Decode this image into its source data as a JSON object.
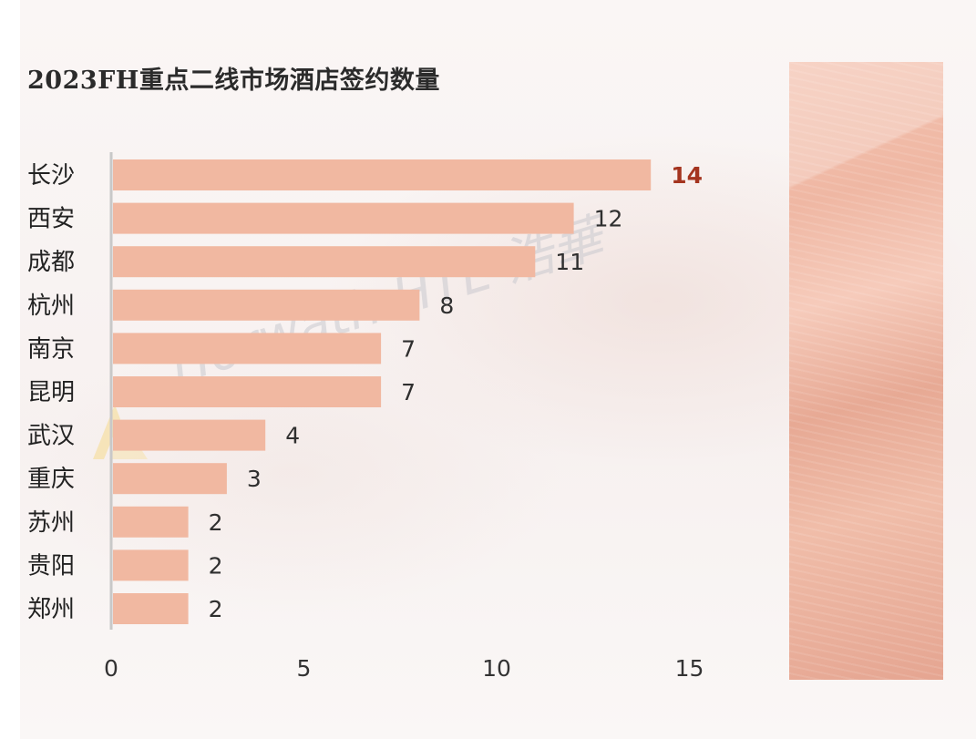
{
  "title": "2023FH重点二线市场酒店签约数量",
  "watermark": "Horwath HTL 浩華",
  "colors": {
    "bar": "#f1b8a1",
    "highlight_label": "#a4341f",
    "axis": "#c8c8c8",
    "side_panel": "#efb7a3"
  },
  "chart_data": {
    "type": "bar",
    "orientation": "horizontal",
    "title": "2023FH重点二线市场酒店签约数量",
    "categories": [
      "长沙",
      "西安",
      "成都",
      "杭州",
      "南京",
      "昆明",
      "武汉",
      "重庆",
      "苏州",
      "贵阳",
      "郑州"
    ],
    "values": [
      14,
      12,
      11,
      8,
      7,
      7,
      4,
      3,
      2,
      2,
      2
    ],
    "xlim": [
      0,
      15
    ],
    "xticks": [
      0,
      5,
      10,
      15
    ],
    "highlight_index": 0,
    "xlabel": "",
    "ylabel": "",
    "grid": false,
    "legend": false
  }
}
